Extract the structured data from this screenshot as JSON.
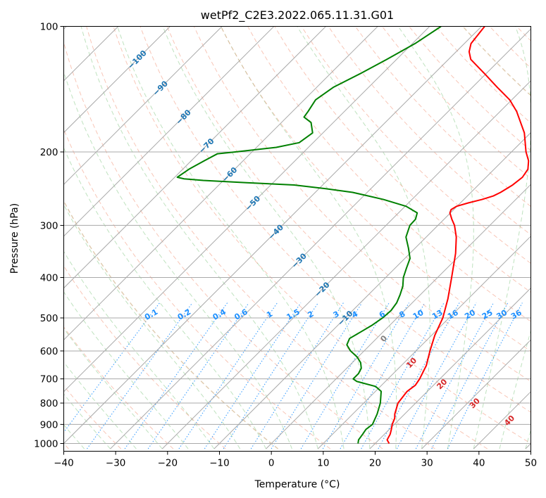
{
  "chart_data": {
    "type": "line",
    "title": "wetPf2_C2E3.2022.065.11.31.G01",
    "xlabel": "Temperature (°C)",
    "ylabel": "Pressure (hPa)",
    "xlim": [
      -40,
      50
    ],
    "ylim": [
      1030,
      100
    ],
    "y_scale": "log",
    "skew_note": "skew-T log-p diagram",
    "x_ticks": [
      "−40",
      "−30",
      "−20",
      "−10",
      "0",
      "10",
      "20",
      "30",
      "40",
      "50"
    ],
    "x_tick_values": [
      -40,
      -30,
      -20,
      -10,
      0,
      10,
      20,
      30,
      40,
      50
    ],
    "y_ticks": [
      "100",
      "200",
      "300",
      "400",
      "500",
      "600",
      "700",
      "800",
      "900",
      "1000"
    ],
    "y_tick_values": [
      100,
      200,
      300,
      400,
      500,
      600,
      700,
      800,
      900,
      1000
    ],
    "grid": true,
    "series": [
      {
        "key": "temperature",
        "color": "#ff0000",
        "points": [
          [
            1000,
            22.7
          ],
          [
            980,
            21.6
          ],
          [
            950,
            21.1
          ],
          [
            925,
            20.4
          ],
          [
            900,
            19.6
          ],
          [
            870,
            18.9
          ],
          [
            850,
            18.1
          ],
          [
            800,
            16.6
          ],
          [
            750,
            16.1
          ],
          [
            725,
            16.5
          ],
          [
            700,
            16.1
          ],
          [
            650,
            14.8
          ],
          [
            600,
            12.7
          ],
          [
            550,
            10.6
          ],
          [
            500,
            8.8
          ],
          [
            450,
            6.1
          ],
          [
            400,
            2.7
          ],
          [
            350,
            -1.2
          ],
          [
            320,
            -4.2
          ],
          [
            300,
            -6.8
          ],
          [
            290,
            -8.5
          ],
          [
            280,
            -10.1
          ],
          [
            275,
            -10.5
          ],
          [
            270,
            -10.1
          ],
          [
            265,
            -8.5
          ],
          [
            260,
            -6.5
          ],
          [
            255,
            -5.0
          ],
          [
            250,
            -4.3
          ],
          [
            240,
            -3.4
          ],
          [
            230,
            -3.0
          ],
          [
            220,
            -3.5
          ],
          [
            210,
            -5.0
          ],
          [
            200,
            -7.2
          ],
          [
            180,
            -11.2
          ],
          [
            160,
            -16.8
          ],
          [
            150,
            -20.4
          ],
          [
            140,
            -25.2
          ],
          [
            130,
            -30.2
          ],
          [
            120,
            -35.7
          ],
          [
            115,
            -37.5
          ],
          [
            110,
            -38.7
          ],
          [
            100,
            -39.4
          ]
        ]
      },
      {
        "key": "dewpoint",
        "color": "#008000",
        "points": [
          [
            1000,
            16.7
          ],
          [
            980,
            16.1
          ],
          [
            950,
            15.8
          ],
          [
            925,
            15.5
          ],
          [
            900,
            15.8
          ],
          [
            850,
            14.7
          ],
          [
            800,
            13.2
          ],
          [
            750,
            11.1
          ],
          [
            730,
            9.1
          ],
          [
            710,
            4.5
          ],
          [
            700,
            3.3
          ],
          [
            680,
            3.3
          ],
          [
            660,
            2.8
          ],
          [
            640,
            1.6
          ],
          [
            620,
            -0.2
          ],
          [
            600,
            -2.6
          ],
          [
            580,
            -4.5
          ],
          [
            560,
            -5.2
          ],
          [
            540,
            -4.3
          ],
          [
            520,
            -3.4
          ],
          [
            500,
            -2.8
          ],
          [
            480,
            -2.6
          ],
          [
            460,
            -3.0
          ],
          [
            440,
            -3.9
          ],
          [
            420,
            -5.0
          ],
          [
            400,
            -6.6
          ],
          [
            380,
            -7.8
          ],
          [
            360,
            -9.0
          ],
          [
            340,
            -11.3
          ],
          [
            320,
            -13.9
          ],
          [
            300,
            -15.4
          ],
          [
            290,
            -15.5
          ],
          [
            280,
            -16.4
          ],
          [
            270,
            -19.8
          ],
          [
            260,
            -25.5
          ],
          [
            250,
            -32.8
          ],
          [
            245,
            -38.7
          ],
          [
            240,
            -45.5
          ],
          [
            237,
            -55.1
          ],
          [
            234,
            -63.9
          ],
          [
            232,
            -67.9
          ],
          [
            230,
            -69.5
          ],
          [
            220,
            -68.8
          ],
          [
            210,
            -67.5
          ],
          [
            202,
            -66.3
          ],
          [
            200,
            -63.2
          ],
          [
            195,
            -56.2
          ],
          [
            190,
            -52.7
          ],
          [
            180,
            -52.0
          ],
          [
            170,
            -54.3
          ],
          [
            165,
            -56.7
          ],
          [
            160,
            -57.0
          ],
          [
            150,
            -57.8
          ],
          [
            140,
            -56.8
          ],
          [
            130,
            -54.3
          ],
          [
            120,
            -51.9
          ],
          [
            110,
            -49.5
          ],
          [
            100,
            -47.8
          ]
        ]
      }
    ],
    "dry_adiabat_labels": [
      "−100",
      "−90",
      "−80",
      "−70",
      "−60",
      "−50",
      "−40",
      "−30",
      "−20",
      "−10"
    ],
    "moist_adiabat_labels": [
      "0",
      "10",
      "20",
      "30",
      "40"
    ],
    "mixing_ratio_labels": [
      "0.1",
      "0.2",
      "0.4",
      "0.6",
      "1",
      "1.5",
      "2",
      "3",
      "4",
      "6",
      "8",
      "10",
      "13",
      "16",
      "20",
      "25",
      "30",
      "36"
    ],
    "colors": {
      "dry_adiabat": "#1f77b4",
      "moist_adiabat": "#d62728",
      "mixing_ratio": "#1e90ff",
      "moist_adiabat_label_zero": "#808080"
    }
  }
}
